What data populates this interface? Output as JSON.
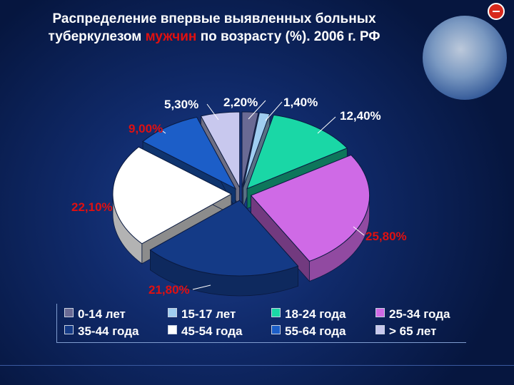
{
  "title": {
    "line1": "Распределение впервые выявленных больных",
    "line2_pre": "туберкулезом ",
    "line2_highlight": "мужчин",
    "line2_post": " по возрасту (%). 2006 г. РФ"
  },
  "colors": {
    "highlight": "#e01010",
    "label_white": "#ffffff",
    "label_red": "#e01010"
  },
  "chart_data": {
    "type": "pie",
    "style": "3d-exploded",
    "title": "Распределение впервые выявленных больных туберкулезом мужчин по возрасту (%). 2006 г. РФ",
    "legend_position": "bottom",
    "unit": "%",
    "slices": [
      {
        "name": "0-14 лет",
        "value": 2.2,
        "label": "2,20%",
        "color": "#6a6a94"
      },
      {
        "name": "15-17 лет",
        "value": 1.4,
        "label": "1,40%",
        "color": "#9fcdf0"
      },
      {
        "name": "18-24 года",
        "value": 12.4,
        "label": "12,40%",
        "color": "#1ad7a6"
      },
      {
        "name": "25-34 года",
        "value": 25.8,
        "label": "25,80%",
        "color": "#cf6ae6"
      },
      {
        "name": "35-44 года",
        "value": 21.8,
        "label": "21,80%",
        "color": "#143a86"
      },
      {
        "name": "45-54 года",
        "value": 22.1,
        "label": "22,10%",
        "color": "#ffffff"
      },
      {
        "name": "55-64 года",
        "value": 9.0,
        "label": "9,00%",
        "color": "#1c5ec8"
      },
      {
        "name": "> 65 лет",
        "value": 5.3,
        "label": "5,30%",
        "color": "#c8c8ee"
      }
    ]
  }
}
